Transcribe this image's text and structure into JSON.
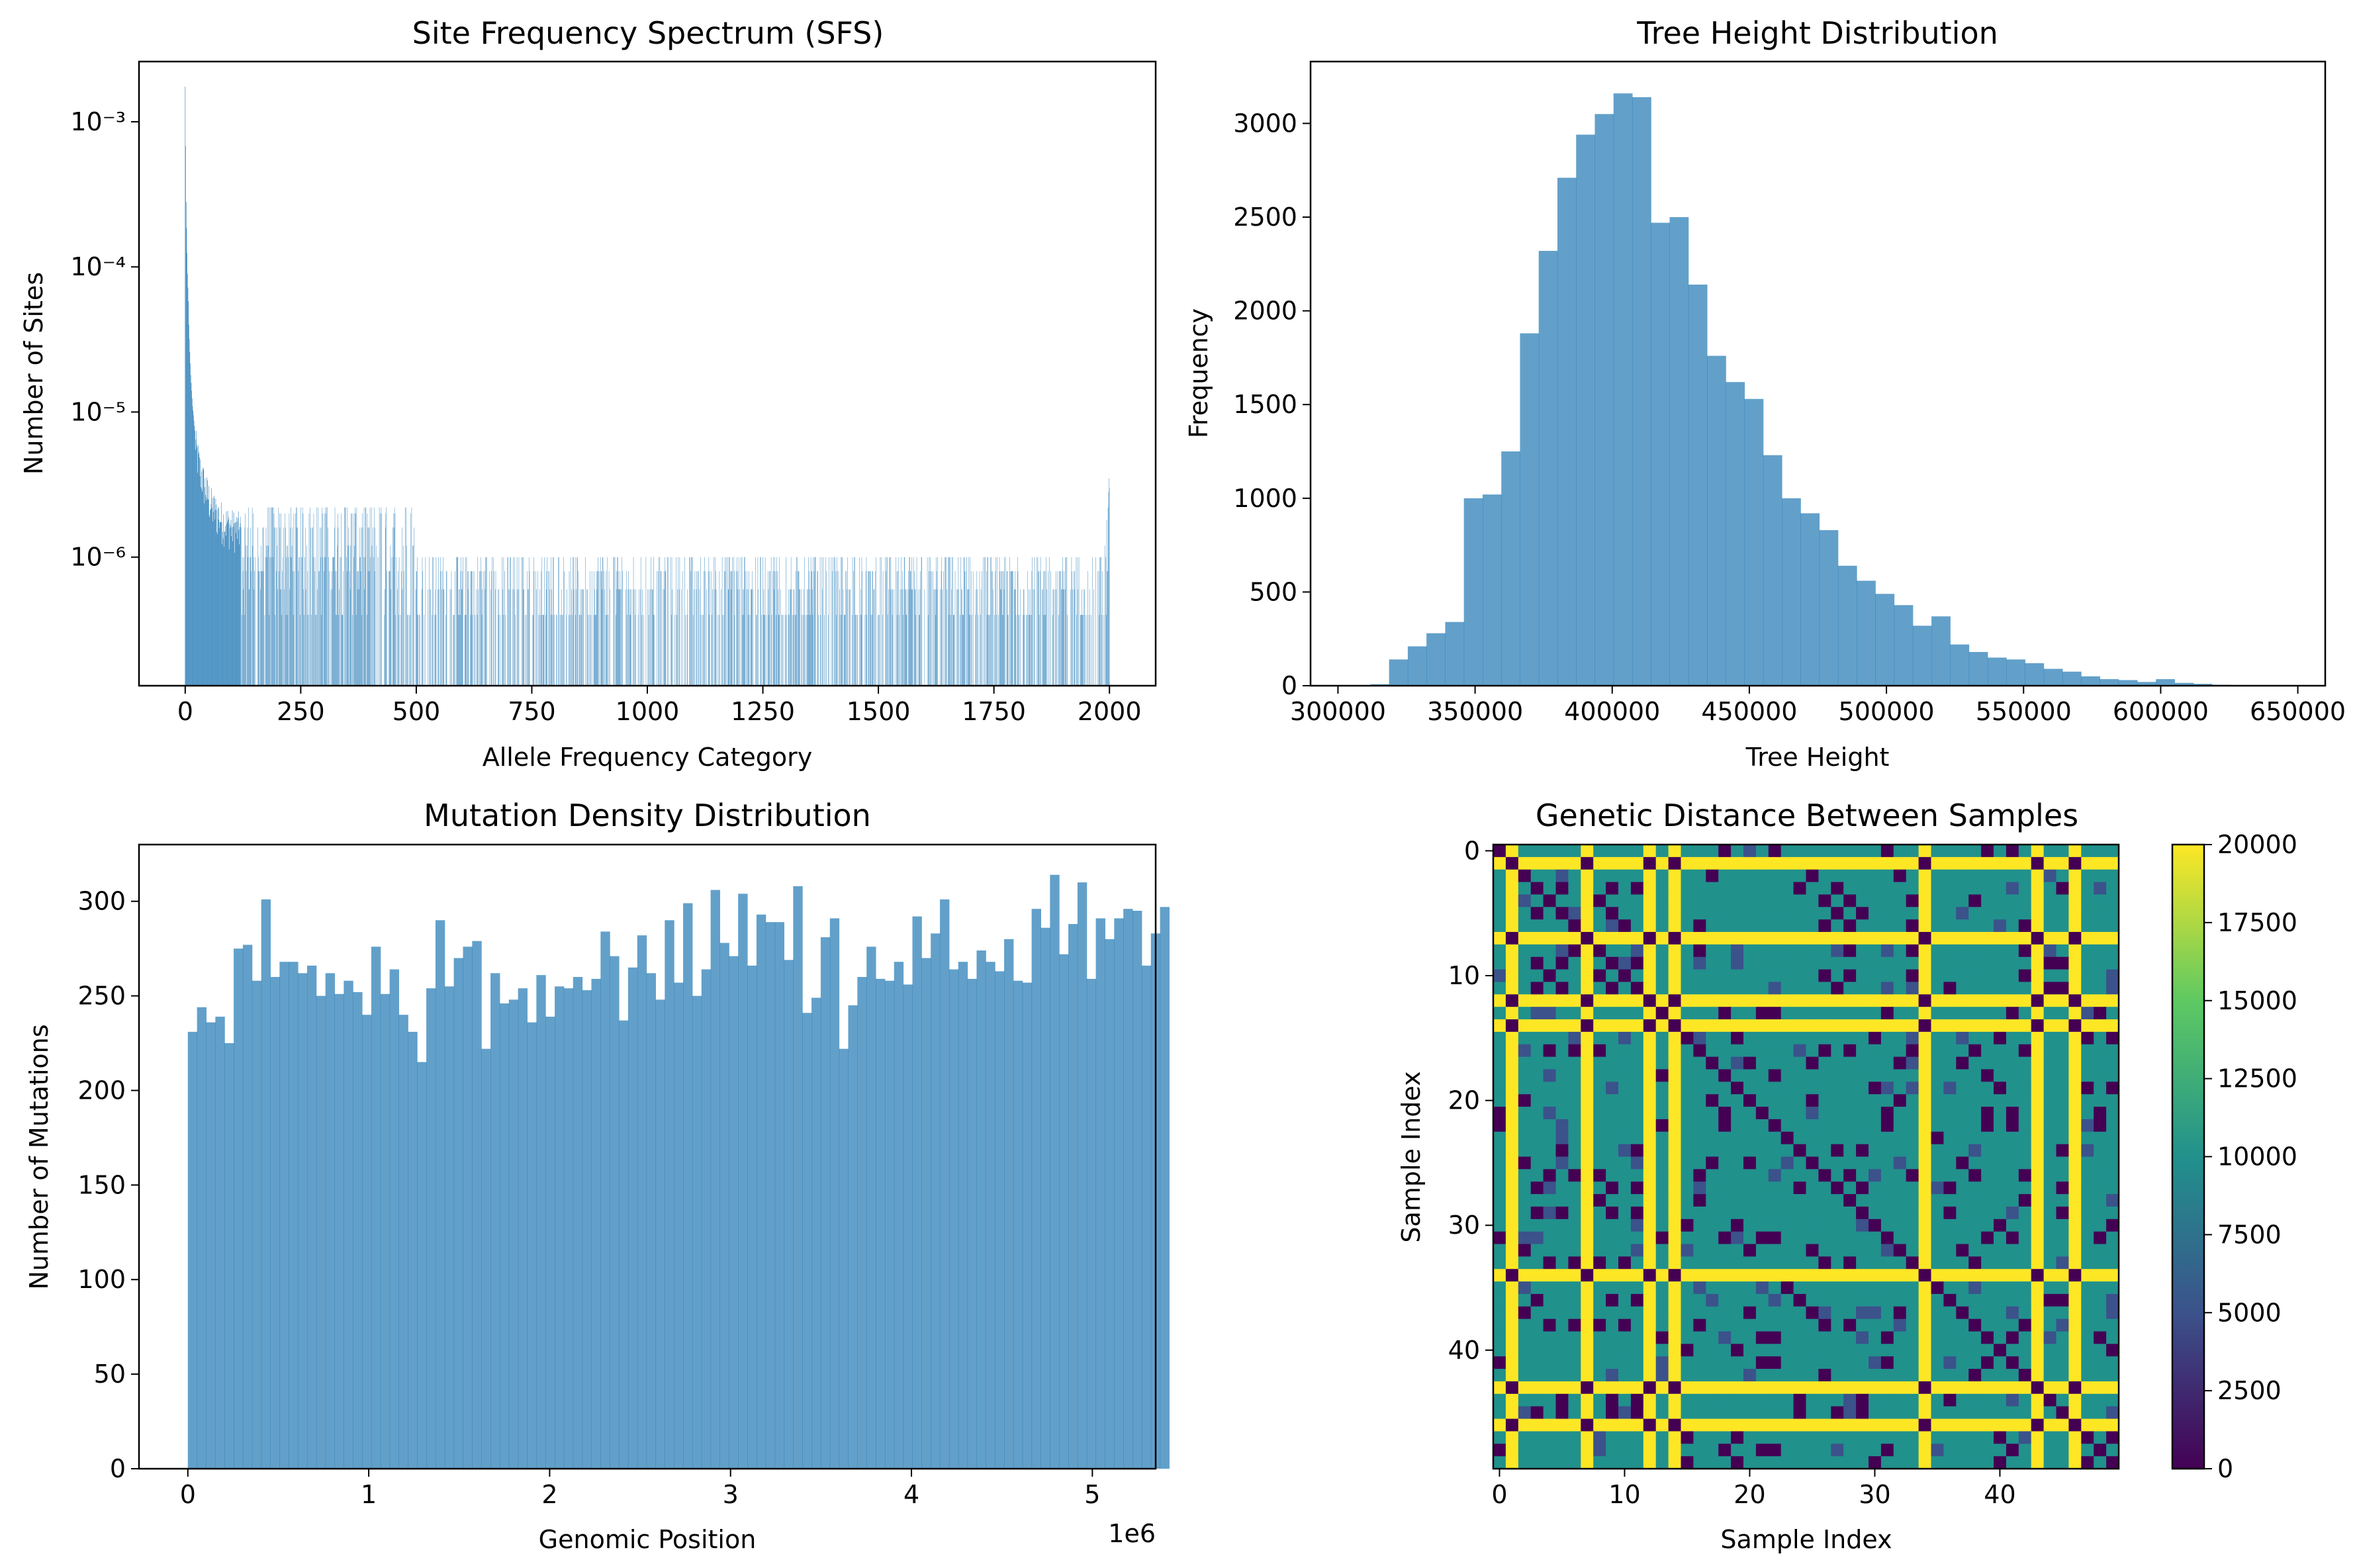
{
  "chart_data": [
    {
      "id": "sfs",
      "type": "bar",
      "title": "Site Frequency Spectrum (SFS)",
      "xlabel": "Allele Frequency Category",
      "ylabel": "Number of Sites",
      "yscale": "log",
      "xlim": [
        -100,
        2100
      ],
      "ylim": [
        1.3e-07,
        0.0026
      ],
      "xticks": [
        0,
        250,
        500,
        750,
        1000,
        1250,
        1500,
        1750,
        2000
      ],
      "yticks": [
        {
          "value": 1e-06,
          "label": "10⁻⁶"
        },
        {
          "value": 1e-05,
          "label": "10⁻⁵"
        },
        {
          "value": 0.0001,
          "label": "10⁻⁴"
        },
        {
          "value": 0.001,
          "label": "10⁻³"
        }
      ],
      "color": "#1f77b4",
      "head_values": [
        [
          0,
          0.00175
        ],
        [
          1,
          0.00068
        ],
        [
          2,
          0.00028
        ],
        [
          3,
          0.000185
        ],
        [
          4,
          0.000125
        ],
        [
          5,
          9e-05
        ],
        [
          6,
          7.2e-05
        ],
        [
          7,
          5.8e-05
        ],
        [
          8,
          4e-05
        ],
        [
          9,
          3.2e-05
        ],
        [
          10,
          2.6e-05
        ],
        [
          12,
          1.8e-05
        ],
        [
          14,
          1.4e-05
        ],
        [
          16,
          1.1e-05
        ],
        [
          18,
          9.5e-06
        ],
        [
          20,
          8e-06
        ],
        [
          24,
          6.2e-06
        ],
        [
          28,
          5.2e-06
        ],
        [
          32,
          4.5e-06
        ],
        [
          36,
          4e-06
        ],
        [
          40,
          3.6e-06
        ],
        [
          45,
          3.2e-06
        ],
        [
          50,
          2.9e-06
        ],
        [
          55,
          2.6e-06
        ],
        [
          60,
          2.4e-06
        ],
        [
          70,
          2.2e-06
        ],
        [
          80,
          2e-06
        ],
        [
          90,
          1.9e-06
        ],
        [
          100,
          1.8e-06
        ],
        [
          120,
          1.7e-06
        ]
      ],
      "tail_values": [
        [
          1985,
          8e-07
        ],
        [
          1990,
          1.2e-06
        ],
        [
          1994,
          1.8e-06
        ],
        [
          1997,
          2.2e-06
        ],
        [
          1998,
          2.8e-06
        ],
        [
          1999,
          3.5e-06
        ],
        [
          2000,
          3e-06
        ]
      ],
      "typical_values": [
        4e-07,
        6e-07,
        8e-07,
        1e-06,
        1.2e-06,
        1.6e-06,
        2e-06,
        2.2e-06
      ]
    },
    {
      "id": "tree",
      "type": "bar",
      "title": "Tree Height Distribution",
      "xlabel": "Tree Height",
      "ylabel": "Frequency",
      "xlim": [
        290000,
        660000
      ],
      "ylim": [
        0,
        3330
      ],
      "xticks": [
        300000,
        350000,
        400000,
        450000,
        500000,
        550000,
        600000,
        650000
      ],
      "yticks": [
        0,
        500,
        1000,
        1500,
        2000,
        2500,
        3000
      ],
      "bin_start": 305000,
      "bin_width": 6820,
      "values": [
        3,
        8,
        140,
        210,
        280,
        340,
        1000,
        1020,
        1250,
        1880,
        2320,
        2710,
        2940,
        3050,
        3160,
        3140,
        2470,
        2500,
        2140,
        1760,
        1620,
        1530,
        1230,
        1000,
        920,
        830,
        640,
        560,
        490,
        430,
        320,
        370,
        220,
        180,
        150,
        140,
        120,
        90,
        75,
        50,
        35,
        30,
        20,
        35,
        15,
        10,
        5,
        3,
        3,
        2
      ],
      "color": "#1f77b4",
      "alpha": 0.7
    },
    {
      "id": "mut",
      "type": "bar",
      "title": "Mutation Density Distribution",
      "xlabel": "Genomic Position",
      "ylabel": "Number of Mutations",
      "offset_label": "1e6",
      "xlim": [
        -270000,
        5350000
      ],
      "ylim": [
        0,
        330
      ],
      "xticks": [
        0,
        1000000,
        2000000,
        3000000,
        4000000,
        5000000
      ],
      "xtick_labels": [
        "0",
        "1",
        "2",
        "3",
        "4",
        "5"
      ],
      "yticks": [
        0,
        50,
        100,
        150,
        200,
        250,
        300
      ],
      "bin_start": 0,
      "bin_width": 50700,
      "values": [
        231,
        244,
        236,
        239,
        225,
        275,
        277,
        258,
        301,
        260,
        268,
        268,
        262,
        266,
        250,
        262,
        251,
        258,
        252,
        240,
        276,
        251,
        264,
        240,
        231,
        215,
        254,
        290,
        255,
        270,
        276,
        279,
        222,
        262,
        246,
        248,
        254,
        236,
        261,
        239,
        255,
        254,
        260,
        253,
        259,
        284,
        271,
        237,
        265,
        282,
        262,
        248,
        290,
        257,
        299,
        250,
        264,
        306,
        278,
        271,
        304,
        266,
        293,
        289,
        289,
        269,
        308,
        241,
        249,
        281,
        291,
        222,
        245,
        260,
        276,
        259,
        258,
        268,
        256,
        292,
        270,
        283,
        301,
        264,
        268,
        259,
        274,
        268,
        263,
        280,
        258,
        257,
        296,
        286,
        314,
        272,
        288,
        310,
        259,
        291,
        280,
        291,
        296,
        295,
        266,
        283,
        297
      ]
    },
    {
      "id": "heat",
      "type": "heatmap",
      "title": "Genetic Distance Between Samples",
      "xlabel": "Sample Index",
      "ylabel": "Sample Index",
      "n": 50,
      "vmin": 0,
      "vmax": 20000,
      "ticks": [
        0,
        10,
        20,
        30,
        40
      ],
      "colorbar_ticks": [
        0,
        2500,
        5000,
        7500,
        10000,
        12500,
        15000,
        17500,
        20000
      ],
      "yellow_rows": [
        1,
        7,
        12,
        14,
        34,
        43,
        46
      ],
      "colors": [
        "#440154",
        "#3b528b",
        "#21918c",
        "#5ec962",
        "#fde725"
      ]
    }
  ]
}
